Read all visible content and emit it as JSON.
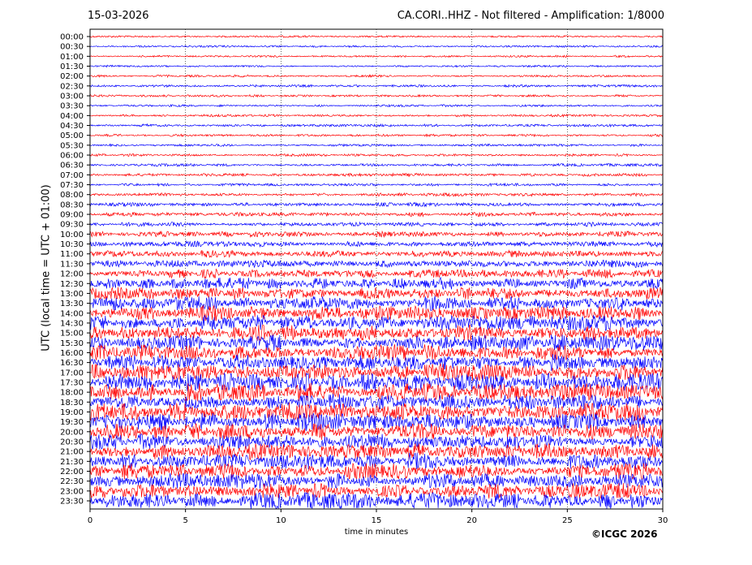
{
  "header": {
    "date": "15-03-2026",
    "title": "CA.CORI..HHZ - Not filtered - Amplification: 1/8000"
  },
  "footer": {
    "credit": "©ICGC 2026"
  },
  "chart_data": {
    "type": "line",
    "xlabel": "time in minutes",
    "ylabel": "UTC (local time = UTC + 01:00)",
    "xlim": [
      0,
      30
    ],
    "xticks": [
      0,
      5,
      10,
      15,
      20,
      25,
      30
    ],
    "grid": "vertical dotted at x ticks",
    "row_labels": [
      "00:00",
      "00:30",
      "01:00",
      "01:30",
      "02:00",
      "02:30",
      "03:00",
      "03:30",
      "04:00",
      "04:30",
      "05:00",
      "05:30",
      "06:00",
      "06:30",
      "07:00",
      "07:30",
      "08:00",
      "08:30",
      "09:00",
      "09:30",
      "10:00",
      "10:30",
      "11:00",
      "11:30",
      "12:00",
      "12:30",
      "13:00",
      "13:30",
      "14:00",
      "14:30",
      "15:00",
      "15:30",
      "16:00",
      "16:30",
      "17:00",
      "17:30",
      "18:00",
      "18:30",
      "19:00",
      "19:30",
      "20:00",
      "20:30",
      "21:00",
      "21:30",
      "22:00",
      "22:30",
      "23:00",
      "23:30"
    ],
    "row_amplitude_relative": [
      0.1,
      0.1,
      0.1,
      0.1,
      0.12,
      0.12,
      0.11,
      0.11,
      0.12,
      0.14,
      0.12,
      0.12,
      0.13,
      0.14,
      0.15,
      0.14,
      0.17,
      0.2,
      0.22,
      0.22,
      0.28,
      0.3,
      0.35,
      0.4,
      0.45,
      0.6,
      0.65,
      0.72,
      0.78,
      0.8,
      0.8,
      0.82,
      0.85,
      0.82,
      0.88,
      0.95,
      0.92,
      0.9,
      0.95,
      0.9,
      0.85,
      0.8,
      0.8,
      0.85,
      0.8,
      0.8,
      0.82,
      0.85
    ],
    "colors": {
      "odd_rows": "#ff0000",
      "even_rows": "#0000ff"
    }
  }
}
